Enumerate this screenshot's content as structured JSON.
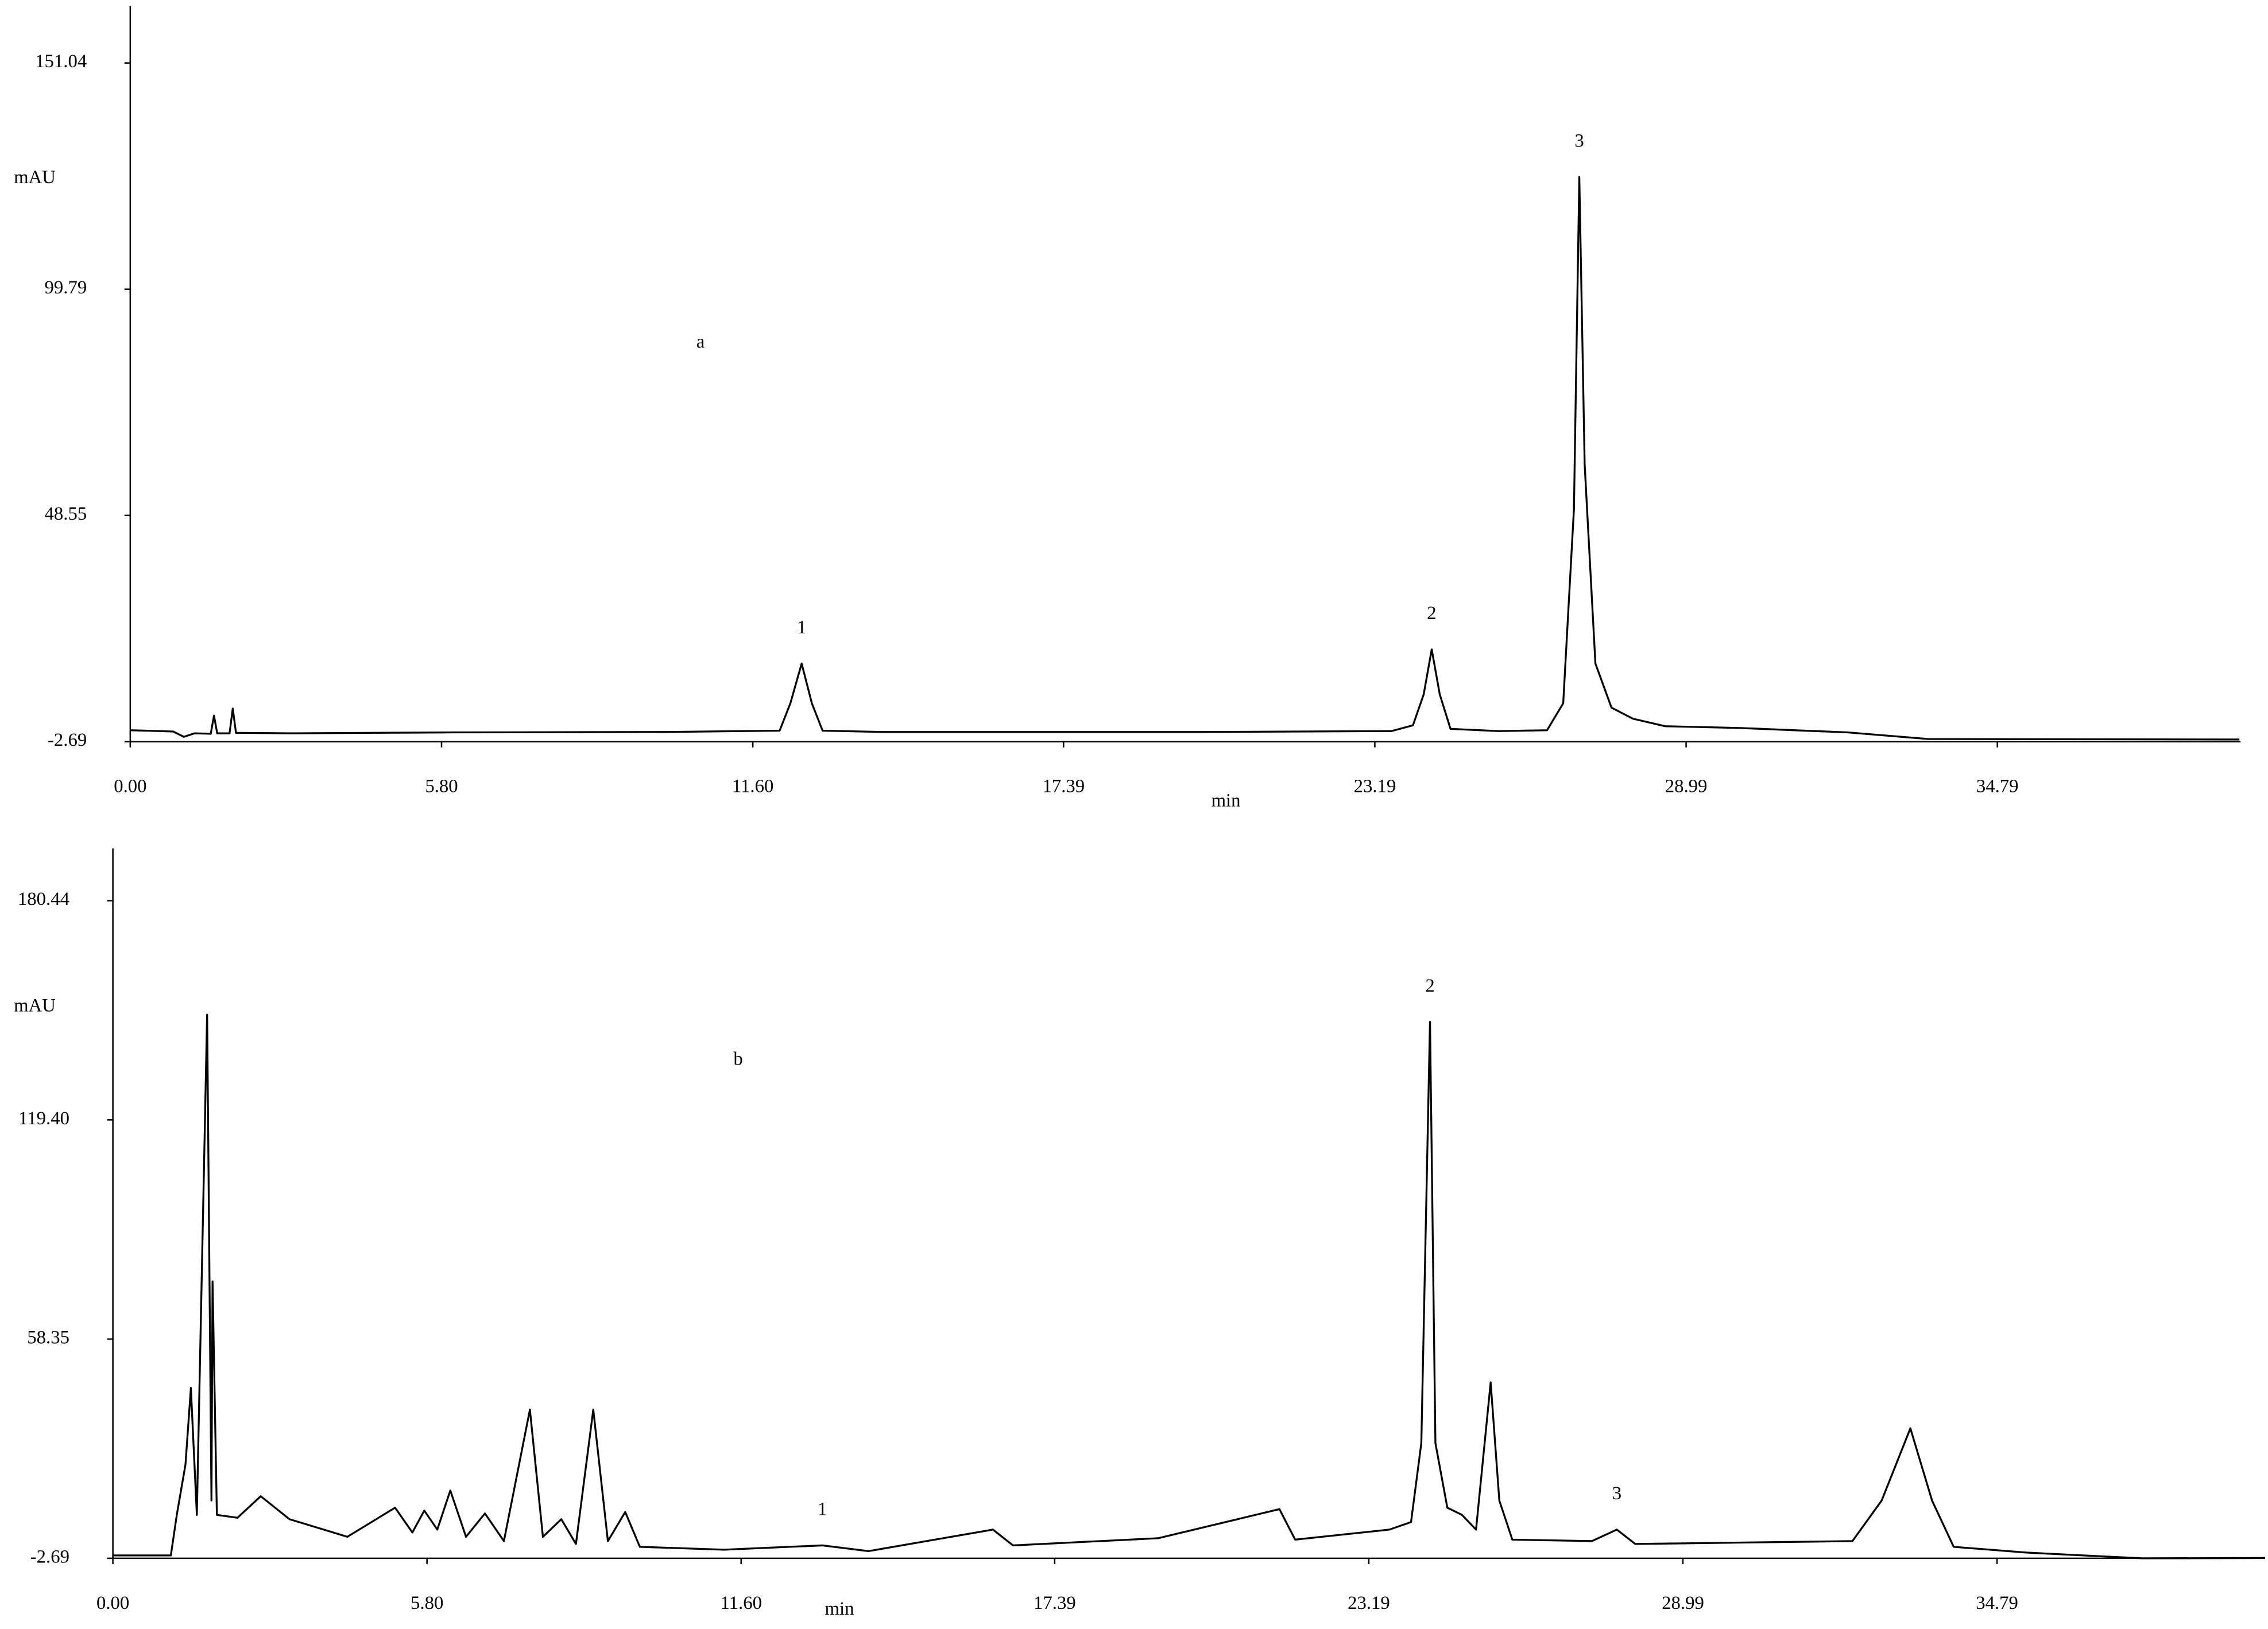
{
  "chart_data": [
    {
      "type": "line",
      "label": "a",
      "ylabel": "mAU",
      "xlabel": "min",
      "xlim": [
        0,
        39.32
      ],
      "ylim": [
        -2.69,
        164
      ],
      "xticks": [
        {
          "value": 0,
          "label": "0.00"
        },
        {
          "value": 5.8,
          "label": "5.80"
        },
        {
          "value": 11.6,
          "label": "11.60"
        },
        17.39,
        23.19,
        28.99,
        34.79
      ],
      "yticks": [
        -2.69,
        48.55,
        99.79,
        151.04
      ],
      "series": [
        {
          "color": "#000000",
          "x": [
            0,
            0.8,
            1.0,
            1.2,
            1.5,
            1.56,
            1.62,
            1.85,
            1.91,
            1.97,
            3,
            6,
            10,
            12.1,
            12.3,
            12.51,
            12.7,
            12.9,
            14,
            16,
            20,
            23.5,
            23.9,
            24.1,
            24.25,
            24.4,
            24.6,
            25.5,
            26.4,
            26.7,
            26.9,
            27.0,
            27.1,
            27.3,
            27.6,
            28.0,
            28.6,
            30,
            32,
            33.5,
            39.3
          ],
          "values": [
            -0.1,
            -0.4,
            -1.6,
            -0.8,
            -0.9,
            3.2,
            -0.8,
            -0.8,
            4.8,
            -0.7,
            -0.8,
            -0.6,
            -0.5,
            -0.2,
            6,
            15.0,
            6,
            -0.2,
            -0.5,
            -0.5,
            -0.5,
            -0.3,
            1,
            8,
            18.2,
            8,
            0.2,
            -0.3,
            -0.1,
            6,
            50,
            125.2,
            60,
            15,
            5,
            2.5,
            0.8,
            0.4,
            -0.6,
            -2.1,
            -2.2
          ]
        }
      ],
      "peak_labels": [
        {
          "text": "1",
          "x": 12.51,
          "y": 15.0
        },
        {
          "text": "2",
          "x": 24.25,
          "y": 18.2
        },
        {
          "text": "3",
          "x": 27.0,
          "y": 125.2
        }
      ]
    },
    {
      "type": "line",
      "label": "b",
      "ylabel": "mAU",
      "xlabel": "min",
      "xlim": [
        0,
        39.74
      ],
      "ylim": [
        -2.69,
        195
      ],
      "xticks": [
        {
          "value": 0,
          "label": "0.00"
        },
        {
          "value": 5.8,
          "label": "5.80"
        },
        {
          "value": 11.6,
          "label": "11.60"
        },
        17.39,
        23.19,
        28.99,
        34.79
      ],
      "yticks": [
        -2.69,
        58.35,
        {
          "value": 119.4,
          "label": "119.40"
        },
        180.44
      ],
      "series": [
        {
          "color": "#000000",
          "x": [
            0,
            1.07,
            1.18,
            1.34,
            1.44,
            1.55,
            1.74,
            1.82,
            1.84,
            1.92,
            2.3,
            2.73,
            3.26,
            4.33,
            5.21,
            5.53,
            5.75,
            5.99,
            6.23,
            6.52,
            6.87,
            7.22,
            7.7,
            7.94,
            8.28,
            8.55,
            8.87,
            9.14,
            9.46,
            9.73,
            11.28,
            13.1,
            13.95,
            16.25,
            16.62,
            19.3,
            21.54,
            21.83,
            23.57,
            23.97,
            24.16,
            24.32,
            24.42,
            24.64,
            24.91,
            25.17,
            25.44,
            25.6,
            25.84,
            27.31,
            27.77,
            28.11,
            32.12,
            32.66,
            33.19,
            33.59,
            33.99,
            35.33,
            37.47,
            39.74
          ],
          "values": [
            -1.9,
            -1.9,
            9.4,
            23.4,
            44.7,
            9.4,
            148.7,
            13.4,
            74.4,
            9.4,
            8.6,
            14.6,
            8.2,
            3.3,
            11.4,
            4.5,
            10.6,
            5.3,
            16.2,
            3.3,
            9.8,
            2.1,
            38.7,
            3.3,
            8.2,
            1.3,
            38.7,
            2.1,
            10.2,
            0.5,
            -0.3,
            0.9,
            -0.7,
            5.3,
            0.9,
            2.9,
            11.0,
            2.5,
            5.3,
            7.4,
            29.4,
            146.7,
            29.4,
            11.4,
            9.4,
            5.3,
            46.3,
            13.4,
            2.5,
            2.1,
            5.3,
            1.3,
            2.1,
            13.4,
            33.5,
            13.4,
            0.5,
            -1.1,
            -2.7,
            -2.6
          ]
        }
      ],
      "peak_labels": [
        {
          "text": "1",
          "x": 13.1,
          "y": 0.9
        },
        {
          "text": "2",
          "x": 24.32,
          "y": 146.7
        },
        {
          "text": "3",
          "x": 27.77,
          "y": 5.3
        }
      ]
    }
  ]
}
